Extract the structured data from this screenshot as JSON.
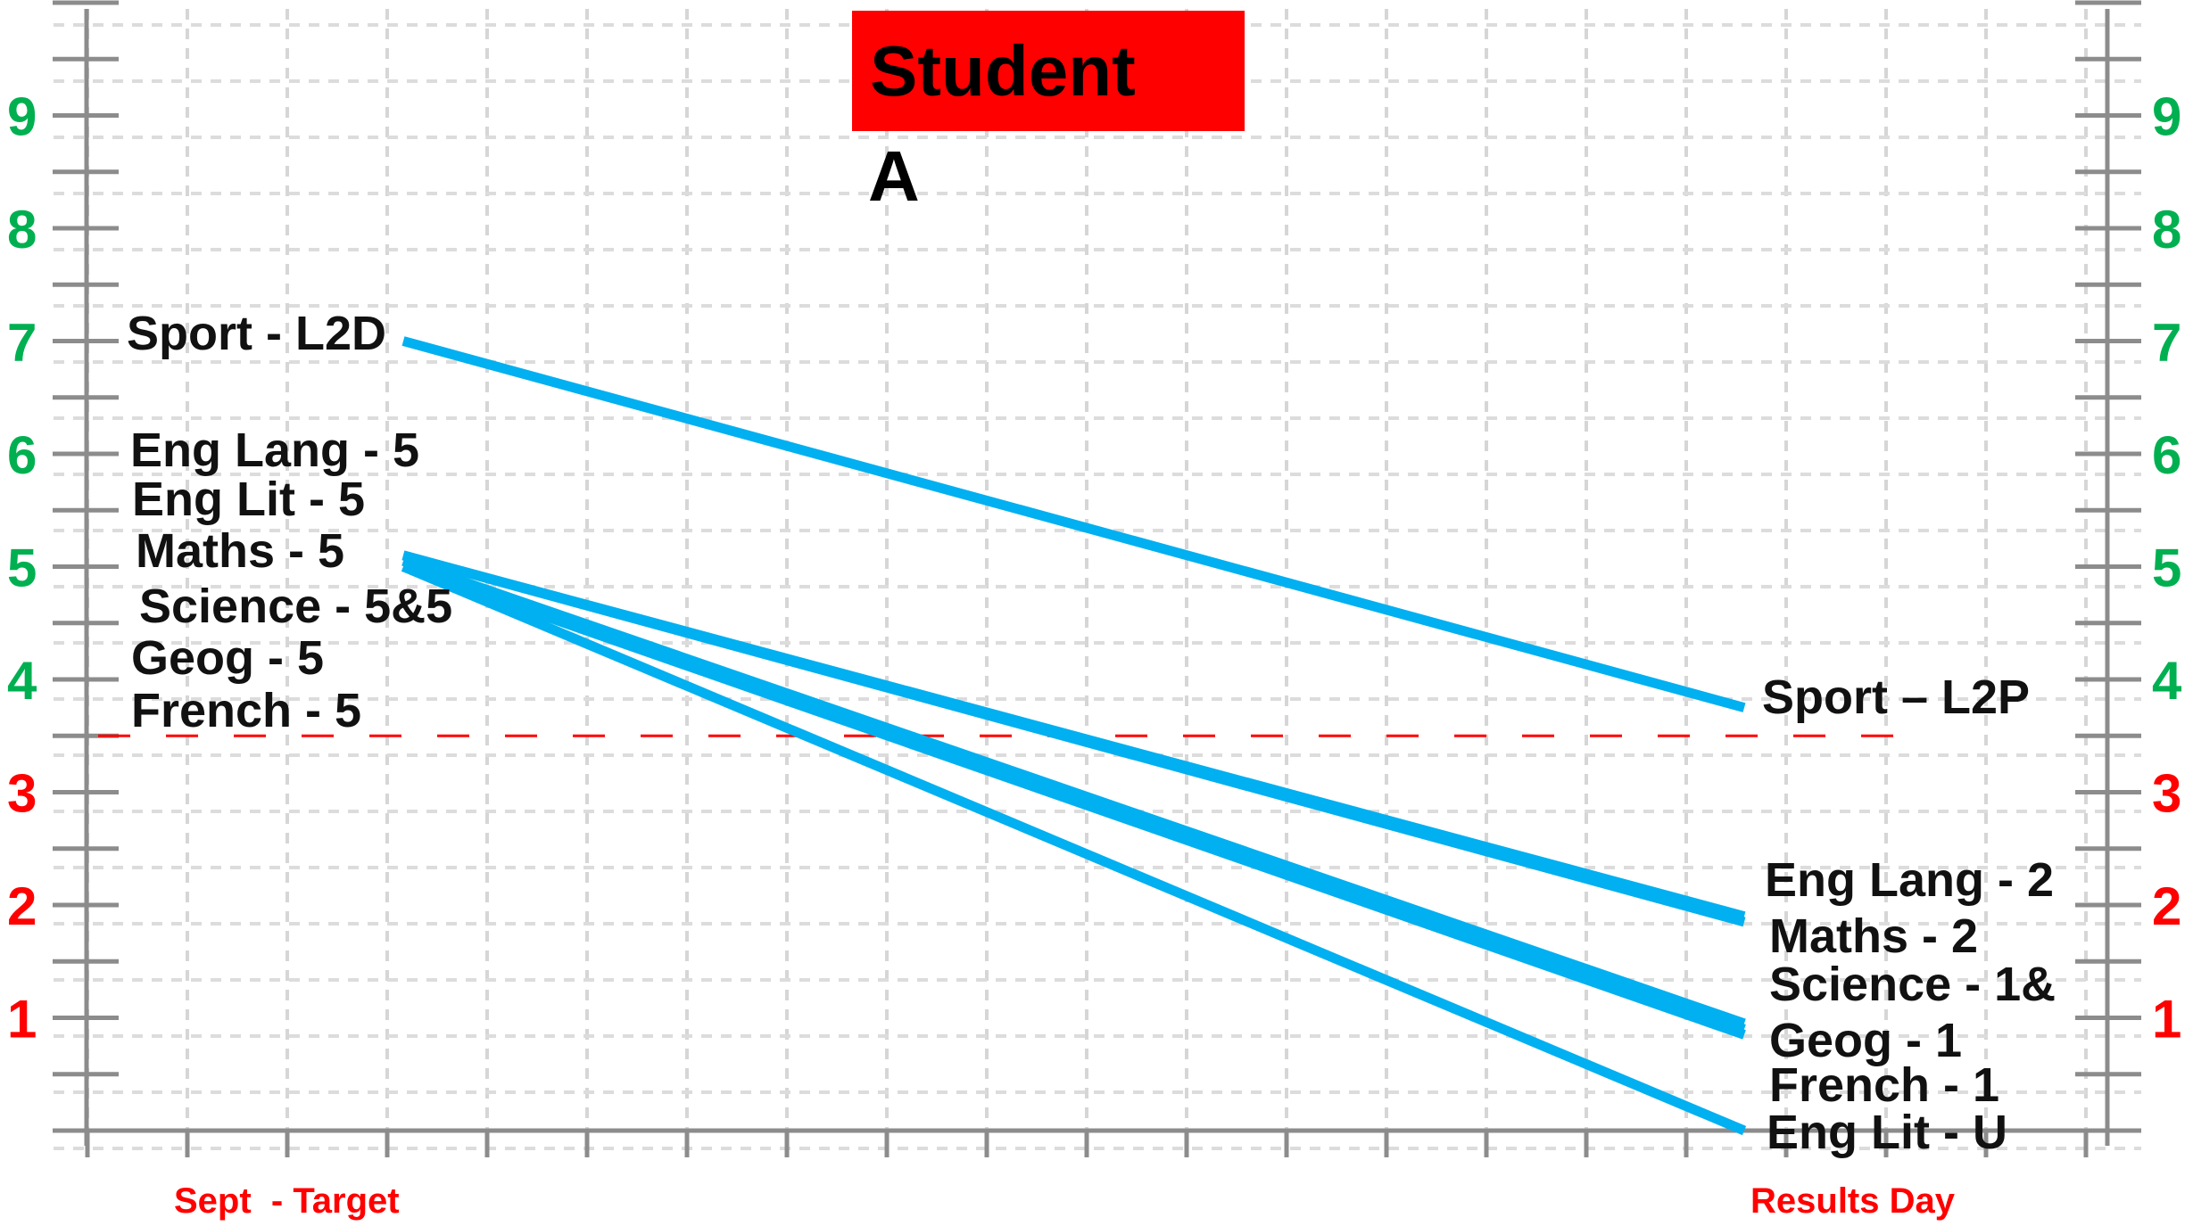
{
  "chart_data": {
    "type": "line",
    "title_line1": "Student",
    "title_line2": "A",
    "x": [
      "Sept  - Target",
      "Results Day"
    ],
    "yticks": [
      "1",
      "2",
      "3",
      "4",
      "5",
      "6",
      "7",
      "8",
      "9"
    ],
    "ylim": [
      0,
      10
    ],
    "threshold": 3.5,
    "grid": true,
    "series": [
      {
        "name": "Sport",
        "start": 7.0,
        "end": 3.75
      },
      {
        "name": "Eng Lang",
        "start": 5.1,
        "end": 1.9
      },
      {
        "name": "Maths",
        "start": 5.1,
        "end": 1.85
      },
      {
        "name": "Science",
        "start": 5.05,
        "end": 0.95
      },
      {
        "name": "Geog",
        "start": 5.0,
        "end": 0.9
      },
      {
        "name": "French",
        "start": 5.0,
        "end": 0.85
      },
      {
        "name": "Eng Lit",
        "start": 5.0,
        "end": 0.0
      }
    ],
    "left_labels": [
      "Sport - L2D",
      "Eng Lang - 5",
      "Eng Lit - 5",
      "Maths - 5",
      "Science - 5&5",
      "Geog - 5",
      "French - 5"
    ],
    "right_labels": [
      "Sport – L2P",
      "Eng Lang - 2",
      "Maths - 2",
      "Science - 1&",
      "Geog - 1",
      "French - 1",
      "Eng Lit - U"
    ],
    "colors": {
      "line": "#00b0f0",
      "pass": "#00b050",
      "fail": "#ff0000",
      "title_box": "#ff0000",
      "threshold": "#ff0000"
    }
  }
}
